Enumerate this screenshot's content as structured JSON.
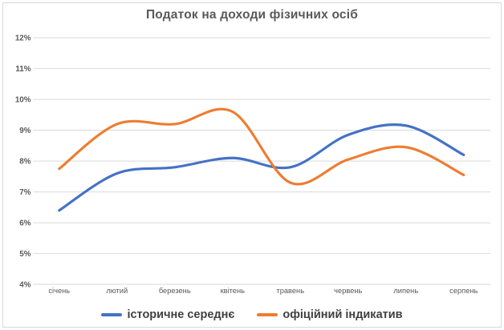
{
  "chart_data": {
    "type": "line",
    "title": "Податок на доходи фізичних осіб",
    "categories": [
      "січень",
      "лютий",
      "березень",
      "квітень",
      "травень",
      "червень",
      "липень",
      "серпень"
    ],
    "series": [
      {
        "name": "історичне середнє",
        "color": "#4472C4",
        "values": [
          6.4,
          7.6,
          7.8,
          8.1,
          7.8,
          8.85,
          9.15,
          8.2
        ]
      },
      {
        "name": "офіційний індикатив",
        "color": "#ED7D31",
        "values": [
          7.75,
          9.2,
          9.2,
          9.6,
          7.3,
          8.05,
          8.45,
          7.55
        ]
      }
    ],
    "unit": "%",
    "ylim": [
      4,
      12
    ],
    "y_tick_step": 1,
    "y_ticks": [
      "4%",
      "5%",
      "6%",
      "7%",
      "8%",
      "9%",
      "10%",
      "11%",
      "12%"
    ],
    "xlabel": "",
    "ylabel": "",
    "grid": "horizontal",
    "legend_position": "bottom",
    "smooth_lines": true
  },
  "styles": {
    "grid_color": "#D9D9D9",
    "axis_text_color": "#595959",
    "title_color": "#595959",
    "legend_text_color": "#404040",
    "background": "#FFFFFF",
    "border_color": "#D9D9D9"
  }
}
